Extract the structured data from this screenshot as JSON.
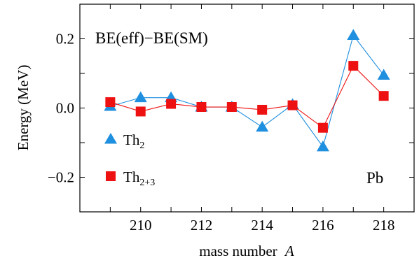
{
  "chart_data": {
    "type": "line",
    "title": "",
    "annotation": "BE(eff)−BE(SM)",
    "element_label": "Pb",
    "xlabel": "mass number A",
    "xlabel_text": "mass number",
    "xlabel_var": "A",
    "ylabel": "Energy (MeV)",
    "xlim": [
      208,
      219
    ],
    "ylim": [
      -0.3,
      0.3
    ],
    "x_ticks": [
      210,
      212,
      214,
      216,
      218
    ],
    "y_ticks": [
      -0.2,
      0.0,
      0.2
    ],
    "y_tick_labels": [
      "−0.2",
      "0.0",
      "0.2"
    ],
    "grid": false,
    "legend_position": "left",
    "x": [
      209,
      210,
      211,
      212,
      213,
      214,
      215,
      216,
      217,
      218
    ],
    "series": [
      {
        "name": "Th2",
        "name_base": "Th",
        "name_sub": "2",
        "color": "#1f8fdf",
        "marker": "triangle",
        "values": [
          0.005,
          0.03,
          0.03,
          0.003,
          0.003,
          -0.055,
          0.01,
          -0.112,
          0.21,
          0.095
        ]
      },
      {
        "name": "Th2+3",
        "name_base": "Th",
        "name_sub": "2+3",
        "color": "#ee1111",
        "marker": "square",
        "values": [
          0.017,
          -0.01,
          0.012,
          0.003,
          0.003,
          -0.005,
          0.008,
          -0.057,
          0.122,
          0.035
        ]
      }
    ]
  }
}
